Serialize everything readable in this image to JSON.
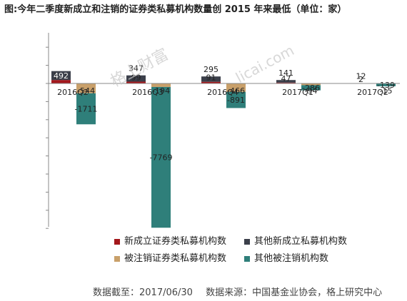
{
  "title": "图:今年二季度新成立和注销的证券类私募机构数量创 2015 年来最低（单位：家）",
  "watermark_cn": "格上财富",
  "watermark_url": "licai.com",
  "footer": {
    "date": "数据截至：2017/06/30",
    "source": "数据来源：中国基金业协会，格上研究中心"
  },
  "chart_data": {
    "type": "bar",
    "categories": [
      "2016Q2",
      "2016Q3",
      "2016Q4",
      "2017Q1",
      "2017Q2"
    ],
    "series": [
      {
        "name": "新成立证券类私募机构数",
        "color": "#a3171c",
        "stack": "new",
        "values": [
          191,
          99,
          91,
          47,
          2
        ]
      },
      {
        "name": "其他新成立私募机构数",
        "color": "#3b3f4a",
        "stack": "new",
        "values": [
          492,
          347,
          295,
          141,
          12
        ]
      },
      {
        "name": "被注销证券类私募机构数",
        "color": "#c9a06a",
        "stack": "cancel",
        "values": [
          -544,
          -194,
          -466,
          -94,
          -15
        ]
      },
      {
        "name": "其他被注销机构数",
        "color": "#2f7f7a",
        "stack": "cancel",
        "values": [
          -1711,
          -7769,
          -891,
          -286,
          -139
        ]
      }
    ],
    "legend_position": "bottom"
  }
}
